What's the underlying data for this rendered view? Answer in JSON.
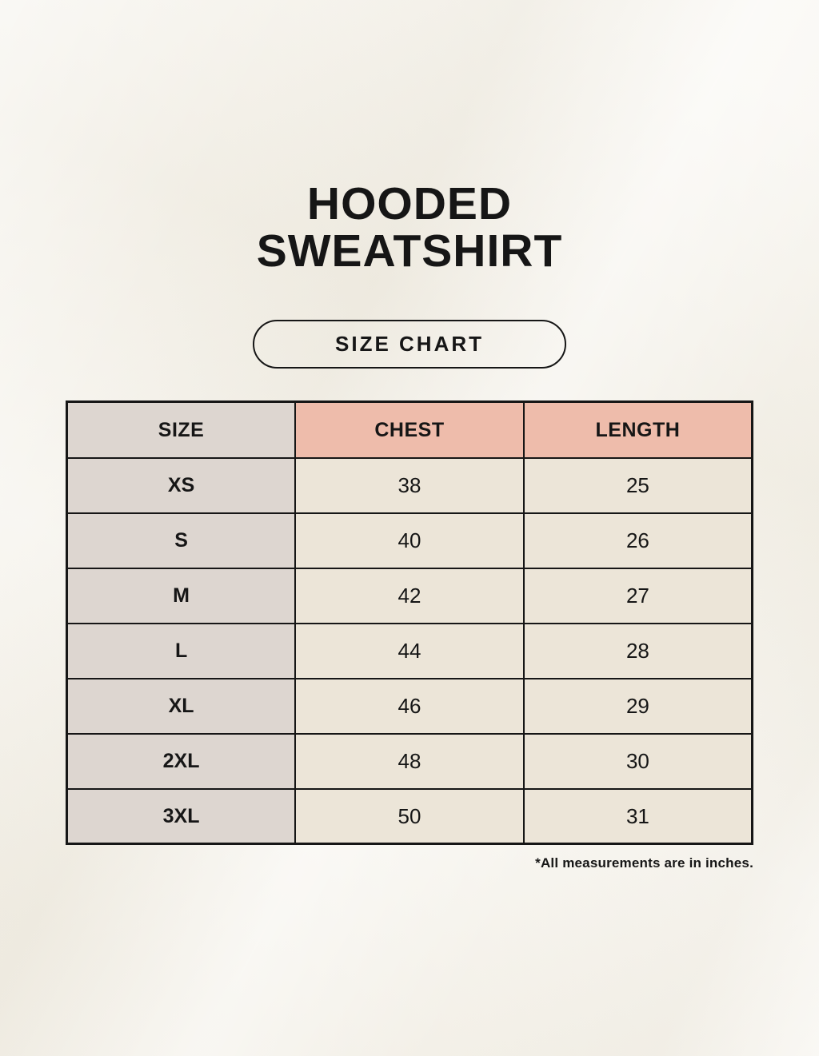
{
  "header": {
    "title_line1": "HOODED",
    "title_line2": "SWEATSHIRT",
    "size_chart_button": "SIZE CHART"
  },
  "footnote": "*All measurements are in inches.",
  "colors": {
    "background": "#f4f1e9",
    "salmon_header": "#eebcab",
    "taupe_column": "#ddd6d0",
    "cream_cell": "#ece5d8",
    "border": "#161616",
    "text": "#161616"
  },
  "chart_data": {
    "type": "table",
    "title": "HOODED SWEATSHIRT",
    "subtitle": "SIZE CHART",
    "units": "inches",
    "columns": [
      "SIZE",
      "CHEST",
      "LENGTH"
    ],
    "rows": [
      {
        "size": "XS",
        "chest": 38,
        "length": 25
      },
      {
        "size": "S",
        "chest": 40,
        "length": 26
      },
      {
        "size": "M",
        "chest": 42,
        "length": 27
      },
      {
        "size": "L",
        "chest": 44,
        "length": 28
      },
      {
        "size": "XL",
        "chest": 46,
        "length": 29
      },
      {
        "size": "2XL",
        "chest": 48,
        "length": 30
      },
      {
        "size": "3XL",
        "chest": 50,
        "length": 31
      }
    ]
  }
}
